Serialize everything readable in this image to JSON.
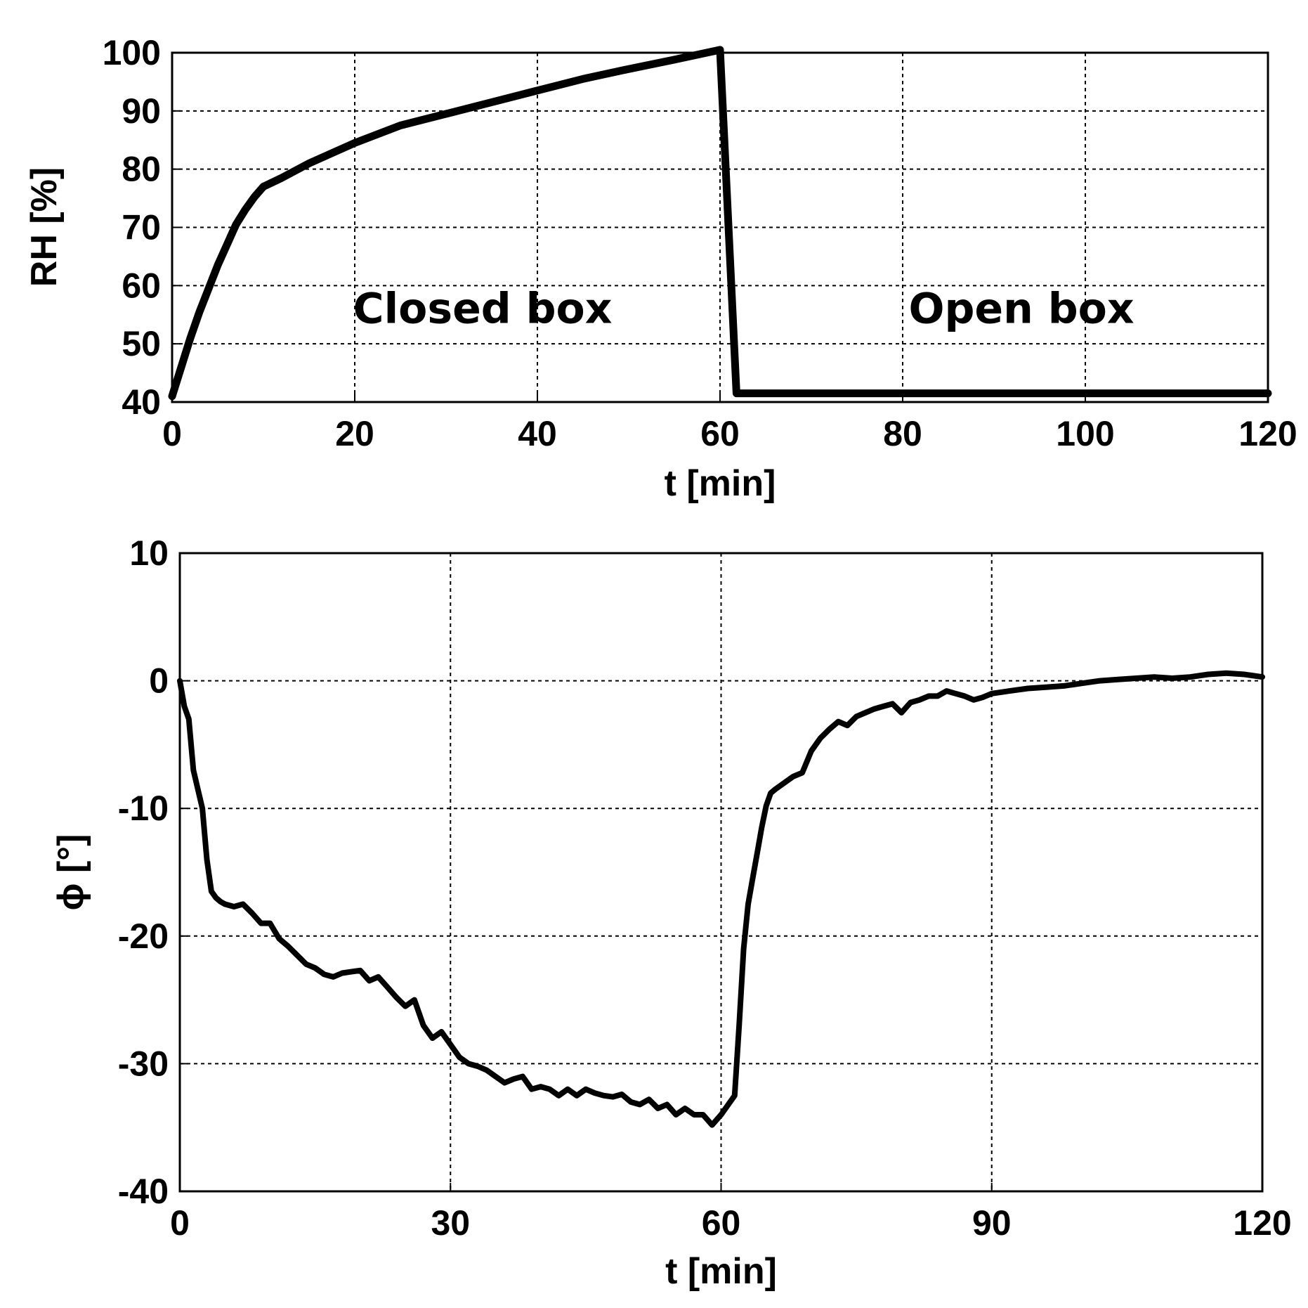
{
  "chart_data": [
    {
      "type": "line",
      "xlabel": "t [min]",
      "ylabel": "RH [%]",
      "xlim": [
        0,
        120
      ],
      "ylim": [
        40,
        100
      ],
      "xticks": [
        "0",
        "20",
        "40",
        "60",
        "80",
        "100",
        "120"
      ],
      "yticks": [
        "40",
        "50",
        "60",
        "70",
        "80",
        "90",
        "100"
      ],
      "grid": true,
      "annotations": [
        {
          "text": "Closed box",
          "x": 34,
          "y": 56
        },
        {
          "text": "Open box",
          "x": 93,
          "y": 56
        }
      ],
      "series": [
        {
          "x": [
            0,
            1,
            2,
            3,
            4,
            5,
            6,
            7,
            8,
            9,
            10,
            12,
            15,
            20,
            25,
            30,
            35,
            40,
            45,
            50,
            55,
            60,
            61.8,
            62,
            70,
            80,
            90,
            100,
            110,
            120
          ],
          "y": [
            41,
            46,
            51,
            55.5,
            59.5,
            63.5,
            67,
            70.5,
            73,
            75.2,
            77,
            78.5,
            81,
            84.5,
            87.5,
            89.5,
            91.5,
            93.5,
            95.5,
            97.2,
            98.8,
            100.5,
            41.5,
            41.5,
            41.5,
            41.5,
            41.5,
            41.5,
            41.5,
            41.5
          ]
        }
      ]
    },
    {
      "type": "line",
      "xlabel": "t [min]",
      "ylabel": "ϕ [°]",
      "xlim": [
        0,
        120
      ],
      "ylim": [
        -40,
        10
      ],
      "xticks": [
        "0",
        "30",
        "60",
        "90",
        "120"
      ],
      "yticks": [
        "-40",
        "-30",
        "-20",
        "-10",
        "0",
        "10"
      ],
      "grid": true,
      "series": [
        {
          "x": [
            0,
            0.5,
            1,
            1.5,
            2,
            2.5,
            3,
            3.5,
            4,
            4.5,
            5,
            6,
            7,
            8,
            9,
            10,
            11,
            12,
            13,
            14,
            15,
            16,
            17,
            18,
            19,
            20,
            21,
            22,
            23,
            24,
            25,
            26,
            27,
            28,
            29,
            30,
            31,
            32,
            33,
            34,
            35,
            36,
            37,
            38,
            39,
            40,
            41,
            42,
            43,
            44,
            45,
            46,
            47,
            48,
            49,
            50,
            51,
            52,
            53,
            54,
            55,
            56,
            57,
            58,
            59,
            60,
            61,
            61.5,
            62,
            62.5,
            63,
            63.5,
            64,
            64.5,
            65,
            65.5,
            66,
            67,
            68,
            69,
            70,
            71,
            72,
            73,
            74,
            75,
            76,
            77,
            78,
            79,
            80,
            81,
            82,
            83,
            84,
            85,
            86,
            87,
            88,
            89,
            90,
            92,
            94,
            96,
            98,
            100,
            102,
            104,
            106,
            108,
            110,
            112,
            114,
            116,
            118,
            120
          ],
          "y": [
            0,
            -2,
            -3,
            -7,
            -8.5,
            -10,
            -14,
            -16.5,
            -17,
            -17.3,
            -17.5,
            -17.7,
            -17.5,
            -18.2,
            -19,
            -19,
            -20.2,
            -20.8,
            -21.5,
            -22.2,
            -22.5,
            -23,
            -23.2,
            -22.9,
            -22.8,
            -22.7,
            -23.5,
            -23.2,
            -24,
            -24.8,
            -25.5,
            -25,
            -27,
            -28,
            -27.5,
            -28.5,
            -29.5,
            -30,
            -30.2,
            -30.5,
            -31,
            -31.5,
            -31.2,
            -31,
            -32,
            -31.8,
            -32,
            -32.5,
            -32,
            -32.5,
            -32,
            -32.3,
            -32.5,
            -32.6,
            -32.4,
            -33,
            -33.2,
            -32.8,
            -33.5,
            -33.2,
            -34,
            -33.5,
            -34,
            -34,
            -34.8,
            -34,
            -33,
            -32.5,
            -27,
            -21,
            -17.5,
            -15.5,
            -13.5,
            -11.5,
            -9.8,
            -8.8,
            -8.5,
            -8,
            -7.5,
            -7.2,
            -5.5,
            -4.5,
            -3.8,
            -3.2,
            -3.5,
            -2.8,
            -2.5,
            -2.2,
            -2,
            -1.8,
            -2.5,
            -1.7,
            -1.5,
            -1.2,
            -1.2,
            -0.8,
            -1,
            -1.2,
            -1.5,
            -1.3,
            -1,
            -0.8,
            -0.6,
            -0.5,
            -0.4,
            -0.2,
            0,
            0.1,
            0.2,
            0.3,
            0.2,
            0.3,
            0.5,
            0.6,
            0.5,
            0.3
          ]
        }
      ]
    }
  ]
}
